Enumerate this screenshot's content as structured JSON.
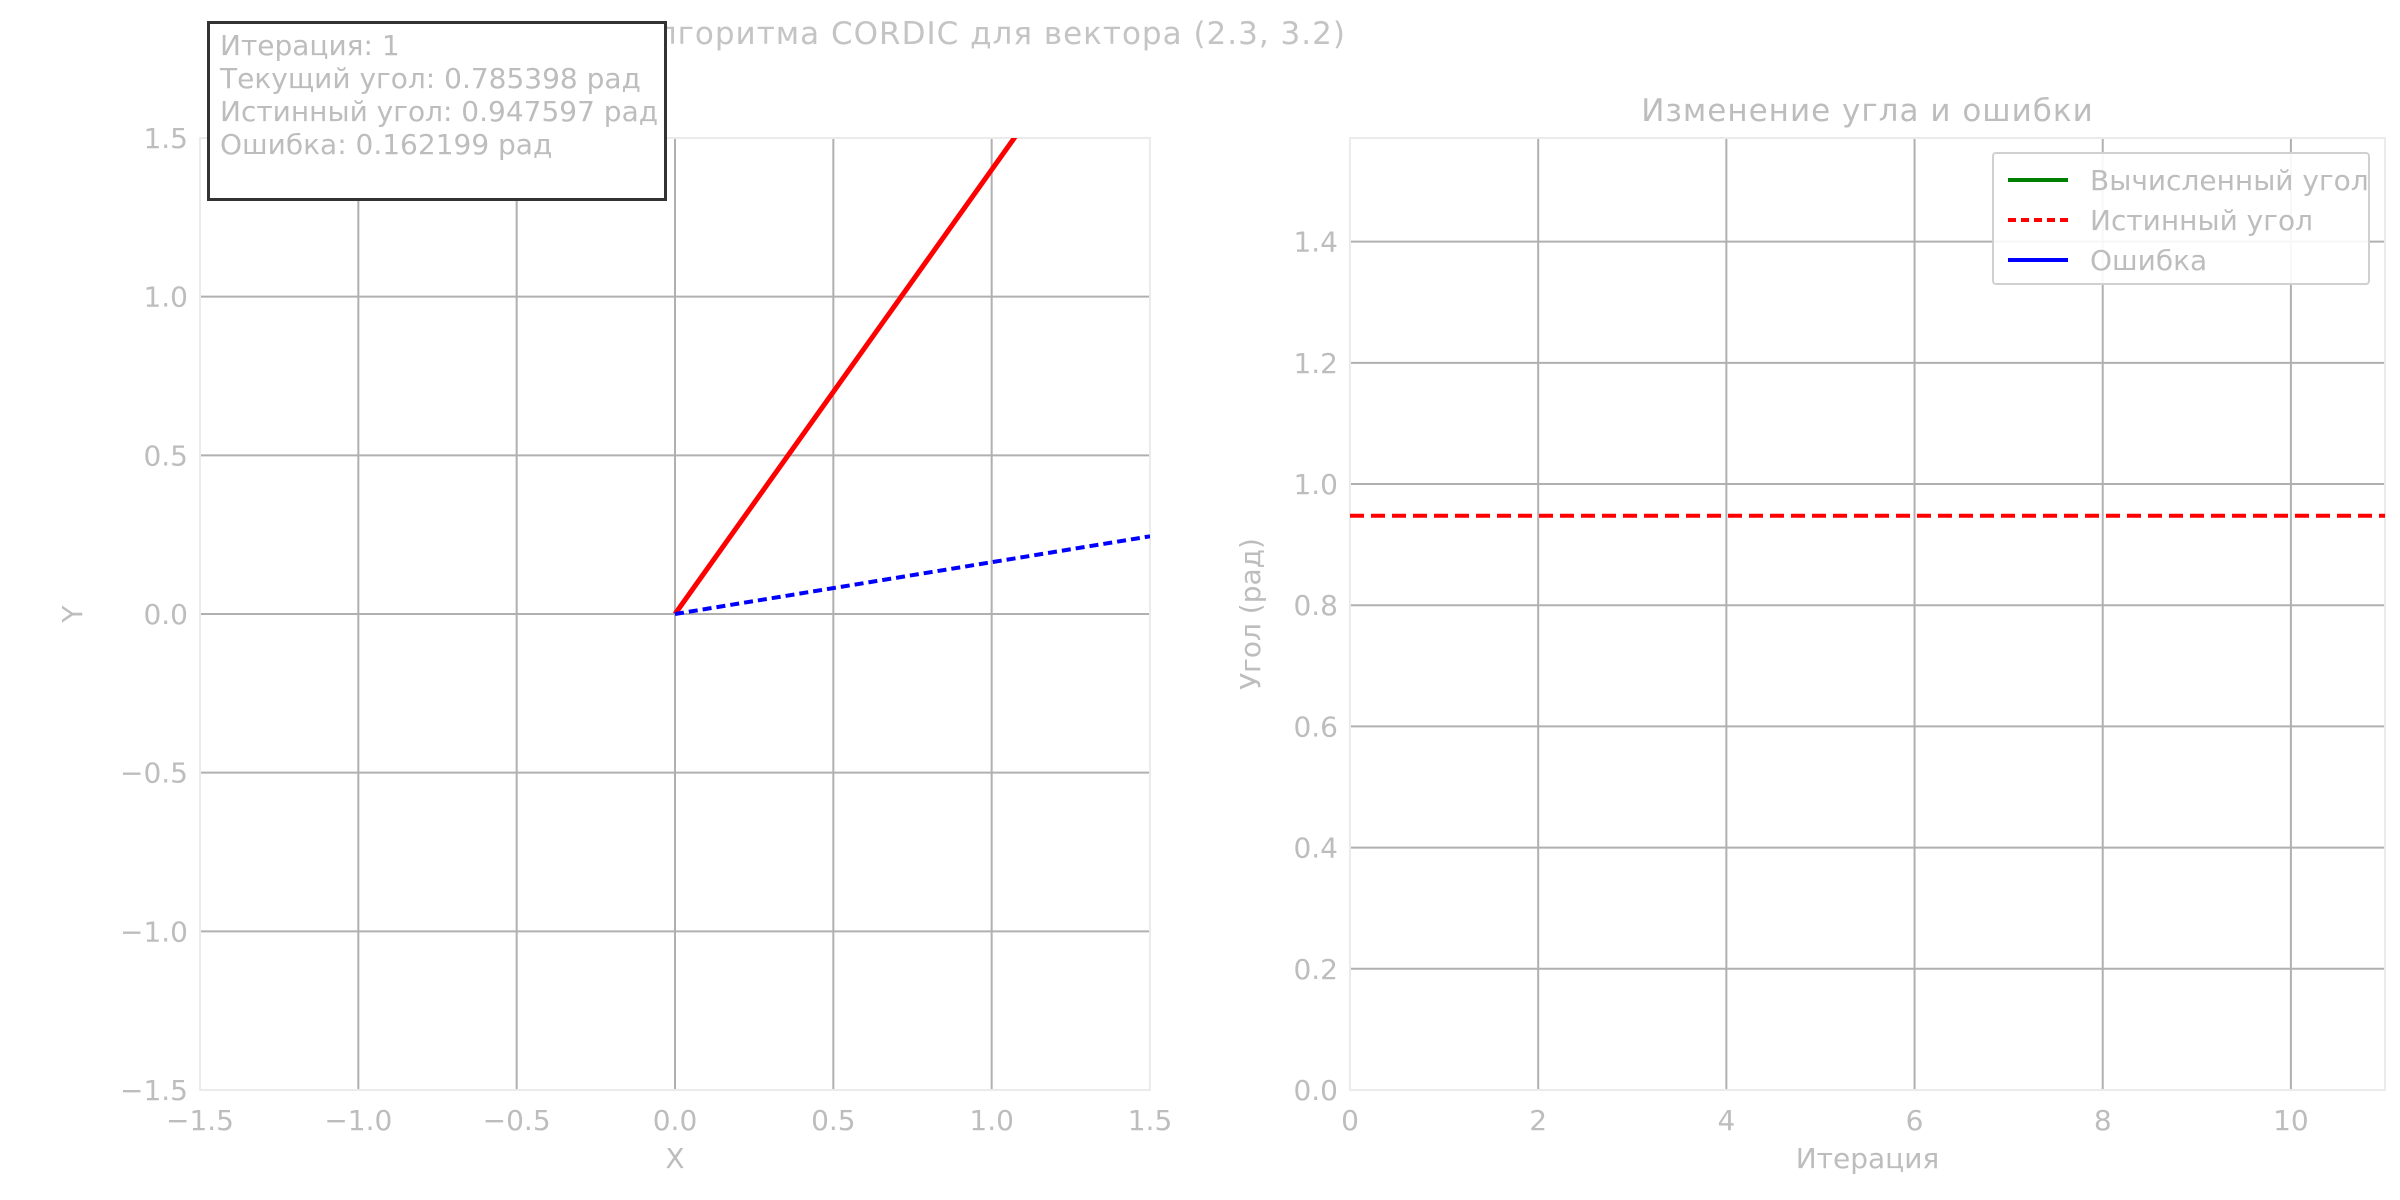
{
  "figure": {
    "suptitle": "Анимация алгоритма CORDIC для вектора (2.3, 3.2)"
  },
  "info": {
    "line1": "Итерация: 1",
    "line2": "Текущий угол: 0.785398 рад",
    "line3": "Истинный угол: 0.947597 рад",
    "line4": "Ошибка: 0.162199 рад"
  },
  "chart_data": [
    {
      "type": "line",
      "title": "",
      "xlabel": "X",
      "ylabel": "Y",
      "xlim": [
        -1.5,
        1.5
      ],
      "ylim": [
        -1.5,
        1.5
      ],
      "xticks": [
        -1.5,
        -1.0,
        -0.5,
        0.0,
        0.5,
        1.0,
        1.5
      ],
      "yticks": [
        -1.5,
        -1.0,
        -0.5,
        0.0,
        0.5,
        1.0,
        1.5
      ],
      "xtick_labels": [
        "−1.5",
        "−1.0",
        "−0.5",
        "0.0",
        "0.5",
        "1.0",
        "1.5"
      ],
      "ytick_labels": [
        "−1.5",
        "−1.0",
        "−0.5",
        "0.0",
        "0.5",
        "1.0",
        "1.5"
      ],
      "grid": true,
      "series": [
        {
          "color": "#ff0000",
          "style": "solid",
          "x": [
            0,
            1.2
          ],
          "y": [
            0,
            1.68
          ]
        },
        {
          "color": "#0000ff",
          "style": "dashed",
          "x": [
            0,
            1.5
          ],
          "y": [
            0,
            0.245
          ]
        }
      ]
    },
    {
      "type": "line",
      "title": "Изменение угла и ошибки",
      "xlabel": "Итерация",
      "ylabel": "Угол (рад)",
      "xlim": [
        0,
        11
      ],
      "ylim": [
        0,
        1.571
      ],
      "xticks": [
        0,
        2,
        4,
        6,
        8,
        10
      ],
      "yticks": [
        0.0,
        0.2,
        0.4,
        0.6,
        0.8,
        1.0,
        1.2,
        1.4
      ],
      "xtick_labels": [
        "0",
        "2",
        "4",
        "6",
        "8",
        "10"
      ],
      "ytick_labels": [
        "0.0",
        "0.2",
        "0.4",
        "0.6",
        "0.8",
        "1.0",
        "1.2",
        "1.4"
      ],
      "grid": true,
      "legend_position": "top-right",
      "series": [
        {
          "name": "Вычисленный угол",
          "color": "#008000",
          "style": "solid",
          "x": [],
          "y": []
        },
        {
          "name": "Истинный угол",
          "color": "#ff0000",
          "style": "dashed",
          "x": [
            0,
            11
          ],
          "y": [
            0.947597,
            0.947597
          ]
        },
        {
          "name": "Ошибка",
          "color": "#0000ff",
          "style": "solid",
          "x": [],
          "y": []
        }
      ]
    }
  ]
}
